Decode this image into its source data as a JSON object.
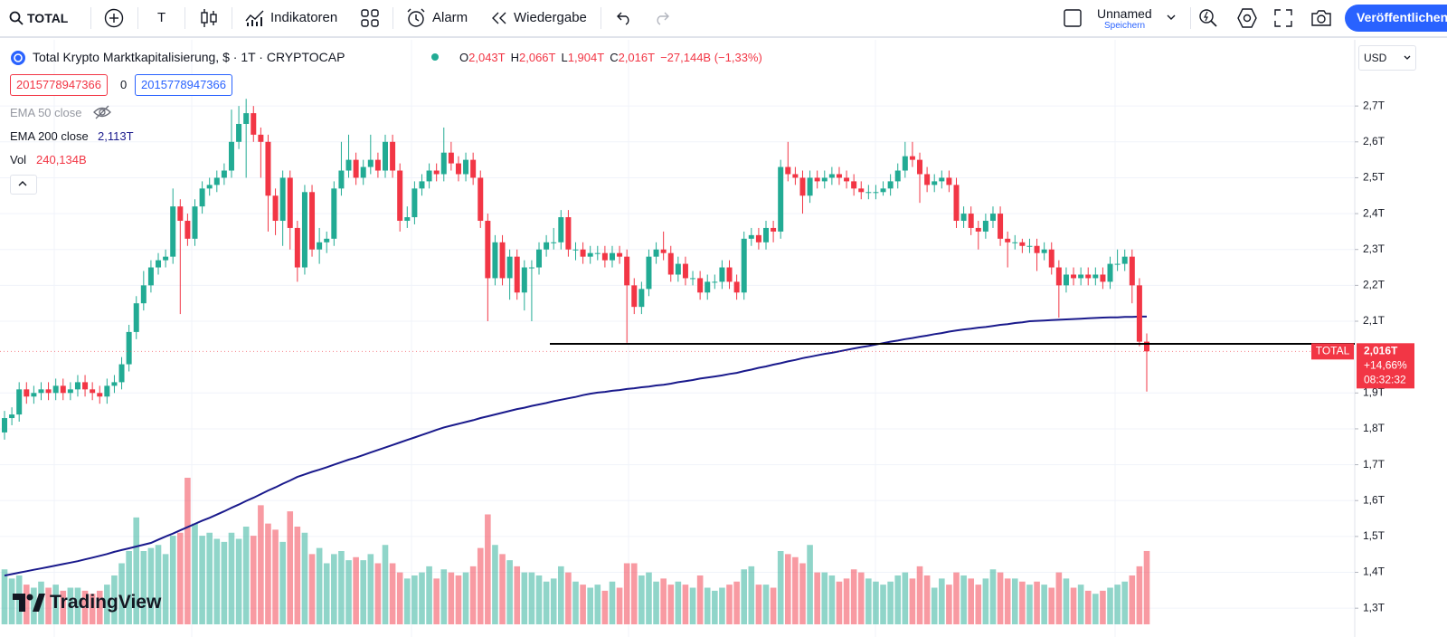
{
  "toolbar": {
    "symbol": "TOTAL",
    "interval": "T",
    "indicators": "Indikatoren",
    "alert": "Alarm",
    "replay": "Wiedergabe",
    "layout_name": "Unnamed",
    "save": "Speichern",
    "publish": "Veröffentlichen"
  },
  "legend": {
    "title": "Total Krypto Marktkapitalisierung, $ · 1T · CRYPTOCAP",
    "ohlc": [
      {
        "label": "O",
        "value": "2,043T"
      },
      {
        "label": "H",
        "value": "2,066T"
      },
      {
        "label": "L",
        "value": "1,904T"
      },
      {
        "label": "C",
        "value": "2,016T"
      }
    ],
    "change": "−27,144B (−1,33%)",
    "inputs": [
      "2015778947366",
      "0",
      "2015778947366"
    ],
    "indicators": [
      {
        "name": "EMA 50 close"
      },
      {
        "name": "EMA 200 close",
        "value": "2,113T"
      },
      {
        "name": "Vol",
        "value": "240,134B"
      }
    ]
  },
  "currency": "USD",
  "logo": "TradingView",
  "price_tag": {
    "symbol": "TOTAL",
    "price": "2,016T",
    "change": "+14,66%",
    "countdown": "08:32:32"
  },
  "chart_data": {
    "type": "candlestick",
    "up_color": "#22ab94",
    "down_color": "#f23645",
    "ema_color": "#1a1a8c",
    "line_color": "#000000",
    "ylim": [
      1.255,
      2.882
    ],
    "yticks": [
      {
        "value": 2.7,
        "label": "2,7T"
      },
      {
        "value": 2.6,
        "label": "2,6T"
      },
      {
        "value": 2.5,
        "label": "2,5T"
      },
      {
        "value": 2.4,
        "label": "2,4T"
      },
      {
        "value": 2.3,
        "label": "2,3T"
      },
      {
        "value": 2.2,
        "label": "2,2T"
      },
      {
        "value": 2.1,
        "label": "2,1T"
      },
      {
        "value": 1.9,
        "label": "1,9T"
      },
      {
        "value": 1.8,
        "label": "1,8T"
      },
      {
        "value": 1.7,
        "label": "1,7T"
      },
      {
        "value": 1.6,
        "label": "1,6T"
      },
      {
        "value": 1.5,
        "label": "1,5T"
      },
      {
        "value": 1.4,
        "label": "1,4T"
      },
      {
        "value": 1.3,
        "label": "1,3T"
      }
    ],
    "grid": true,
    "horizontal_line": 2.037,
    "open": [
      1.79,
      1.83,
      1.84,
      1.91,
      1.89,
      1.9,
      1.91,
      1.9,
      1.92,
      1.9,
      1.91,
      1.93,
      1.91,
      1.9,
      1.89,
      1.92,
      1.93,
      1.98,
      2.07,
      2.15,
      2.2,
      2.25,
      2.27,
      2.28,
      2.42,
      2.38,
      2.33,
      2.42,
      2.47,
      2.48,
      2.5,
      2.52,
      2.6,
      2.65,
      2.68,
      2.62,
      2.6,
      2.45,
      2.38,
      2.5,
      2.36,
      2.25,
      2.46,
      2.3,
      2.32,
      2.33,
      2.47,
      2.52,
      2.55,
      2.5,
      2.53,
      2.55,
      2.52,
      2.6,
      2.52,
      2.38,
      2.39,
      2.47,
      2.49,
      2.52,
      2.51,
      2.57,
      2.54,
      2.51,
      2.55,
      2.5,
      2.38,
      2.22,
      2.32,
      2.22,
      2.28,
      2.18,
      2.25,
      2.25,
      2.3,
      2.32,
      2.32,
      2.39,
      2.3,
      2.3,
      2.28,
      2.29,
      2.29,
      2.27,
      2.29,
      2.28,
      2.2,
      2.14,
      2.19,
      2.28,
      2.3,
      2.29,
      2.23,
      2.26,
      2.22,
      2.22,
      2.18,
      2.21,
      2.21,
      2.25,
      2.21,
      2.18,
      2.33,
      2.34,
      2.32,
      2.36,
      2.35,
      2.53,
      2.51,
      2.5,
      2.45,
      2.5,
      2.49,
      2.5,
      2.51,
      2.5,
      2.49,
      2.47,
      2.46,
      2.46,
      2.46,
      2.47,
      2.49,
      2.52,
      2.56,
      2.55,
      2.51,
      2.48,
      2.49,
      2.5,
      2.48,
      2.38,
      2.4,
      2.36,
      2.35,
      2.38,
      2.4,
      2.33,
      2.32,
      2.32,
      2.31,
      2.31,
      2.29,
      2.3,
      2.25,
      2.2,
      2.23,
      2.22,
      2.23,
      2.22,
      2.23,
      2.21,
      2.26,
      2.26,
      2.28,
      2.2,
      2.043
    ],
    "high": [
      1.85,
      1.86,
      1.93,
      1.93,
      1.92,
      1.93,
      1.93,
      1.94,
      1.94,
      1.93,
      1.95,
      1.95,
      1.93,
      1.92,
      1.94,
      1.95,
      2.0,
      2.09,
      2.17,
      2.24,
      2.27,
      2.29,
      2.3,
      2.47,
      2.44,
      2.4,
      2.44,
      2.49,
      2.5,
      2.52,
      2.54,
      2.69,
      2.7,
      2.72,
      2.7,
      2.64,
      2.62,
      2.47,
      2.52,
      2.52,
      2.38,
      2.48,
      2.48,
      2.36,
      2.35,
      2.49,
      2.6,
      2.62,
      2.57,
      2.55,
      2.62,
      2.57,
      2.62,
      2.62,
      2.54,
      2.42,
      2.49,
      2.51,
      2.54,
      2.54,
      2.64,
      2.6,
      2.56,
      2.57,
      2.57,
      2.52,
      2.4,
      2.34,
      2.34,
      2.3,
      2.3,
      2.27,
      2.27,
      2.32,
      2.34,
      2.36,
      2.41,
      2.41,
      2.32,
      2.32,
      2.31,
      2.31,
      2.31,
      2.31,
      2.31,
      2.3,
      2.22,
      2.21,
      2.3,
      2.32,
      2.35,
      2.31,
      2.28,
      2.28,
      2.24,
      2.24,
      2.23,
      2.23,
      2.27,
      2.27,
      2.23,
      2.35,
      2.36,
      2.36,
      2.38,
      2.38,
      2.55,
      2.6,
      2.53,
      2.52,
      2.52,
      2.52,
      2.52,
      2.53,
      2.53,
      2.52,
      2.51,
      2.49,
      2.48,
      2.48,
      2.49,
      2.51,
      2.54,
      2.6,
      2.6,
      2.57,
      2.53,
      2.51,
      2.52,
      2.52,
      2.5,
      2.42,
      2.42,
      2.38,
      2.4,
      2.42,
      2.42,
      2.35,
      2.34,
      2.33,
      2.33,
      2.33,
      2.32,
      2.32,
      2.27,
      2.25,
      2.25,
      2.25,
      2.25,
      2.25,
      2.25,
      2.28,
      2.3,
      2.3,
      2.3,
      2.22,
      2.066
    ],
    "low": [
      1.77,
      1.81,
      1.82,
      1.87,
      1.87,
      1.88,
      1.88,
      1.88,
      1.88,
      1.88,
      1.89,
      1.89,
      1.88,
      1.87,
      1.87,
      1.9,
      1.91,
      1.96,
      2.05,
      2.13,
      2.18,
      2.23,
      2.25,
      2.26,
      2.12,
      2.31,
      2.31,
      2.4,
      2.45,
      2.46,
      2.48,
      2.5,
      2.58,
      2.5,
      2.6,
      2.5,
      2.35,
      2.34,
      2.31,
      2.3,
      2.21,
      2.23,
      2.28,
      2.26,
      2.29,
      2.31,
      2.45,
      2.5,
      2.48,
      2.48,
      2.51,
      2.5,
      2.5,
      2.5,
      2.35,
      2.36,
      2.37,
      2.45,
      2.47,
      2.49,
      2.49,
      2.52,
      2.49,
      2.49,
      2.48,
      2.36,
      2.1,
      2.2,
      2.2,
      2.16,
      2.16,
      2.13,
      2.1,
      2.23,
      2.28,
      2.3,
      2.3,
      2.28,
      2.27,
      2.26,
      2.26,
      2.27,
      2.25,
      2.25,
      2.26,
      2.04,
      2.12,
      2.12,
      2.17,
      2.26,
      2.27,
      2.21,
      2.21,
      2.2,
      2.2,
      2.16,
      2.16,
      2.19,
      2.19,
      2.19,
      2.16,
      2.16,
      2.31,
      2.3,
      2.3,
      2.32,
      2.33,
      2.49,
      2.48,
      2.4,
      2.43,
      2.47,
      2.47,
      2.48,
      2.48,
      2.47,
      2.45,
      2.44,
      2.44,
      2.44,
      2.45,
      2.45,
      2.47,
      2.5,
      2.53,
      2.43,
      2.46,
      2.46,
      2.47,
      2.46,
      2.36,
      2.36,
      2.34,
      2.3,
      2.33,
      2.36,
      2.31,
      2.25,
      2.3,
      2.29,
      2.29,
      2.24,
      2.27,
      2.23,
      2.11,
      2.18,
      2.2,
      2.2,
      2.2,
      2.2,
      2.19,
      2.19,
      2.24,
      2.24,
      2.15,
      2.03,
      1.904
    ],
    "close": [
      1.83,
      1.84,
      1.91,
      1.89,
      1.9,
      1.91,
      1.9,
      1.92,
      1.9,
      1.91,
      1.93,
      1.91,
      1.9,
      1.89,
      1.92,
      1.93,
      1.98,
      2.07,
      2.15,
      2.2,
      2.25,
      2.27,
      2.28,
      2.42,
      2.38,
      2.33,
      2.42,
      2.47,
      2.48,
      2.5,
      2.52,
      2.6,
      2.65,
      2.68,
      2.62,
      2.6,
      2.45,
      2.38,
      2.5,
      2.36,
      2.25,
      2.46,
      2.3,
      2.32,
      2.33,
      2.47,
      2.52,
      2.55,
      2.5,
      2.53,
      2.55,
      2.52,
      2.6,
      2.52,
      2.38,
      2.39,
      2.47,
      2.49,
      2.52,
      2.51,
      2.57,
      2.54,
      2.51,
      2.55,
      2.5,
      2.38,
      2.22,
      2.32,
      2.22,
      2.28,
      2.18,
      2.25,
      2.25,
      2.3,
      2.32,
      2.32,
      2.39,
      2.3,
      2.3,
      2.28,
      2.29,
      2.29,
      2.27,
      2.29,
      2.28,
      2.2,
      2.14,
      2.19,
      2.28,
      2.3,
      2.29,
      2.23,
      2.26,
      2.22,
      2.22,
      2.18,
      2.21,
      2.21,
      2.25,
      2.21,
      2.18,
      2.33,
      2.34,
      2.32,
      2.36,
      2.35,
      2.53,
      2.51,
      2.5,
      2.45,
      2.5,
      2.49,
      2.5,
      2.51,
      2.5,
      2.49,
      2.47,
      2.46,
      2.46,
      2.46,
      2.47,
      2.49,
      2.52,
      2.56,
      2.55,
      2.51,
      2.48,
      2.49,
      2.5,
      2.48,
      2.38,
      2.4,
      2.36,
      2.35,
      2.38,
      2.4,
      2.33,
      2.32,
      2.32,
      2.31,
      2.31,
      2.29,
      2.3,
      2.25,
      2.2,
      2.23,
      2.22,
      2.23,
      2.22,
      2.23,
      2.21,
      2.26,
      2.26,
      2.28,
      2.2,
      2.043,
      2.016
    ],
    "volume": [
      180,
      150,
      160,
      130,
      120,
      140,
      120,
      130,
      110,
      120,
      120,
      110,
      100,
      110,
      130,
      160,
      200,
      240,
      350,
      240,
      250,
      260,
      230,
      290,
      300,
      480,
      330,
      290,
      300,
      280,
      270,
      300,
      280,
      320,
      290,
      390,
      330,
      310,
      270,
      370,
      320,
      300,
      230,
      250,
      200,
      230,
      240,
      210,
      220,
      210,
      230,
      200,
      260,
      200,
      170,
      150,
      160,
      170,
      190,
      150,
      180,
      170,
      160,
      170,
      190,
      250,
      360,
      260,
      230,
      210,
      190,
      170,
      170,
      160,
      140,
      150,
      190,
      170,
      140,
      130,
      120,
      130,
      110,
      140,
      120,
      200,
      200,
      160,
      170,
      140,
      150,
      130,
      140,
      130,
      120,
      160,
      120,
      110,
      120,
      130,
      140,
      180,
      190,
      130,
      130,
      120,
      240,
      230,
      220,
      200,
      260,
      170,
      170,
      160,
      140,
      150,
      180,
      170,
      150,
      140,
      130,
      140,
      160,
      170,
      150,
      190,
      160,
      120,
      150,
      130,
      170,
      160,
      150,
      130,
      150,
      180,
      170,
      150,
      150,
      140,
      130,
      140,
      130,
      120,
      170,
      150,
      120,
      130,
      110,
      100,
      110,
      120,
      130,
      140,
      160,
      190,
      240.134
    ],
    "ema200": [
      1.391,
      1.395,
      1.399,
      1.403,
      1.407,
      1.411,
      1.415,
      1.419,
      1.423,
      1.427,
      1.431,
      1.436,
      1.441,
      1.446,
      1.451,
      1.457,
      1.462,
      1.467,
      1.472,
      1.477,
      1.482,
      1.491,
      1.5,
      1.508,
      1.517,
      1.526,
      1.535,
      1.544,
      1.552,
      1.561,
      1.57,
      1.58,
      1.589,
      1.599,
      1.608,
      1.618,
      1.628,
      1.637,
      1.647,
      1.656,
      1.666,
      1.673,
      1.68,
      1.686,
      1.693,
      1.7,
      1.707,
      1.714,
      1.72,
      1.727,
      1.734,
      1.741,
      1.748,
      1.755,
      1.762,
      1.769,
      1.776,
      1.783,
      1.79,
      1.797,
      1.804,
      1.809,
      1.814,
      1.819,
      1.824,
      1.83,
      1.835,
      1.84,
      1.845,
      1.85,
      1.855,
      1.859,
      1.864,
      1.868,
      1.872,
      1.877,
      1.881,
      1.885,
      1.889,
      1.894,
      1.898,
      1.901,
      1.903,
      1.906,
      1.908,
      1.911,
      1.913,
      1.916,
      1.918,
      1.921,
      1.923,
      1.926,
      1.93,
      1.933,
      1.936,
      1.94,
      1.943,
      1.946,
      1.949,
      1.953,
      1.956,
      1.961,
      1.965,
      1.97,
      1.974,
      1.979,
      1.983,
      1.988,
      1.992,
      1.997,
      2.001,
      2.005,
      2.009,
      2.012,
      2.016,
      2.02,
      2.024,
      2.028,
      2.031,
      2.035,
      2.039,
      2.043,
      2.046,
      2.05,
      2.053,
      2.057,
      2.06,
      2.064,
      2.067,
      2.071,
      2.074,
      2.077,
      2.079,
      2.082,
      2.084,
      2.087,
      2.09,
      2.092,
      2.095,
      2.097,
      2.1,
      2.101,
      2.102,
      2.103,
      2.104,
      2.105,
      2.106,
      2.107,
      2.108,
      2.109,
      2.11,
      2.111,
      2.111,
      2.112,
      2.112,
      2.113,
      2.113
    ]
  }
}
